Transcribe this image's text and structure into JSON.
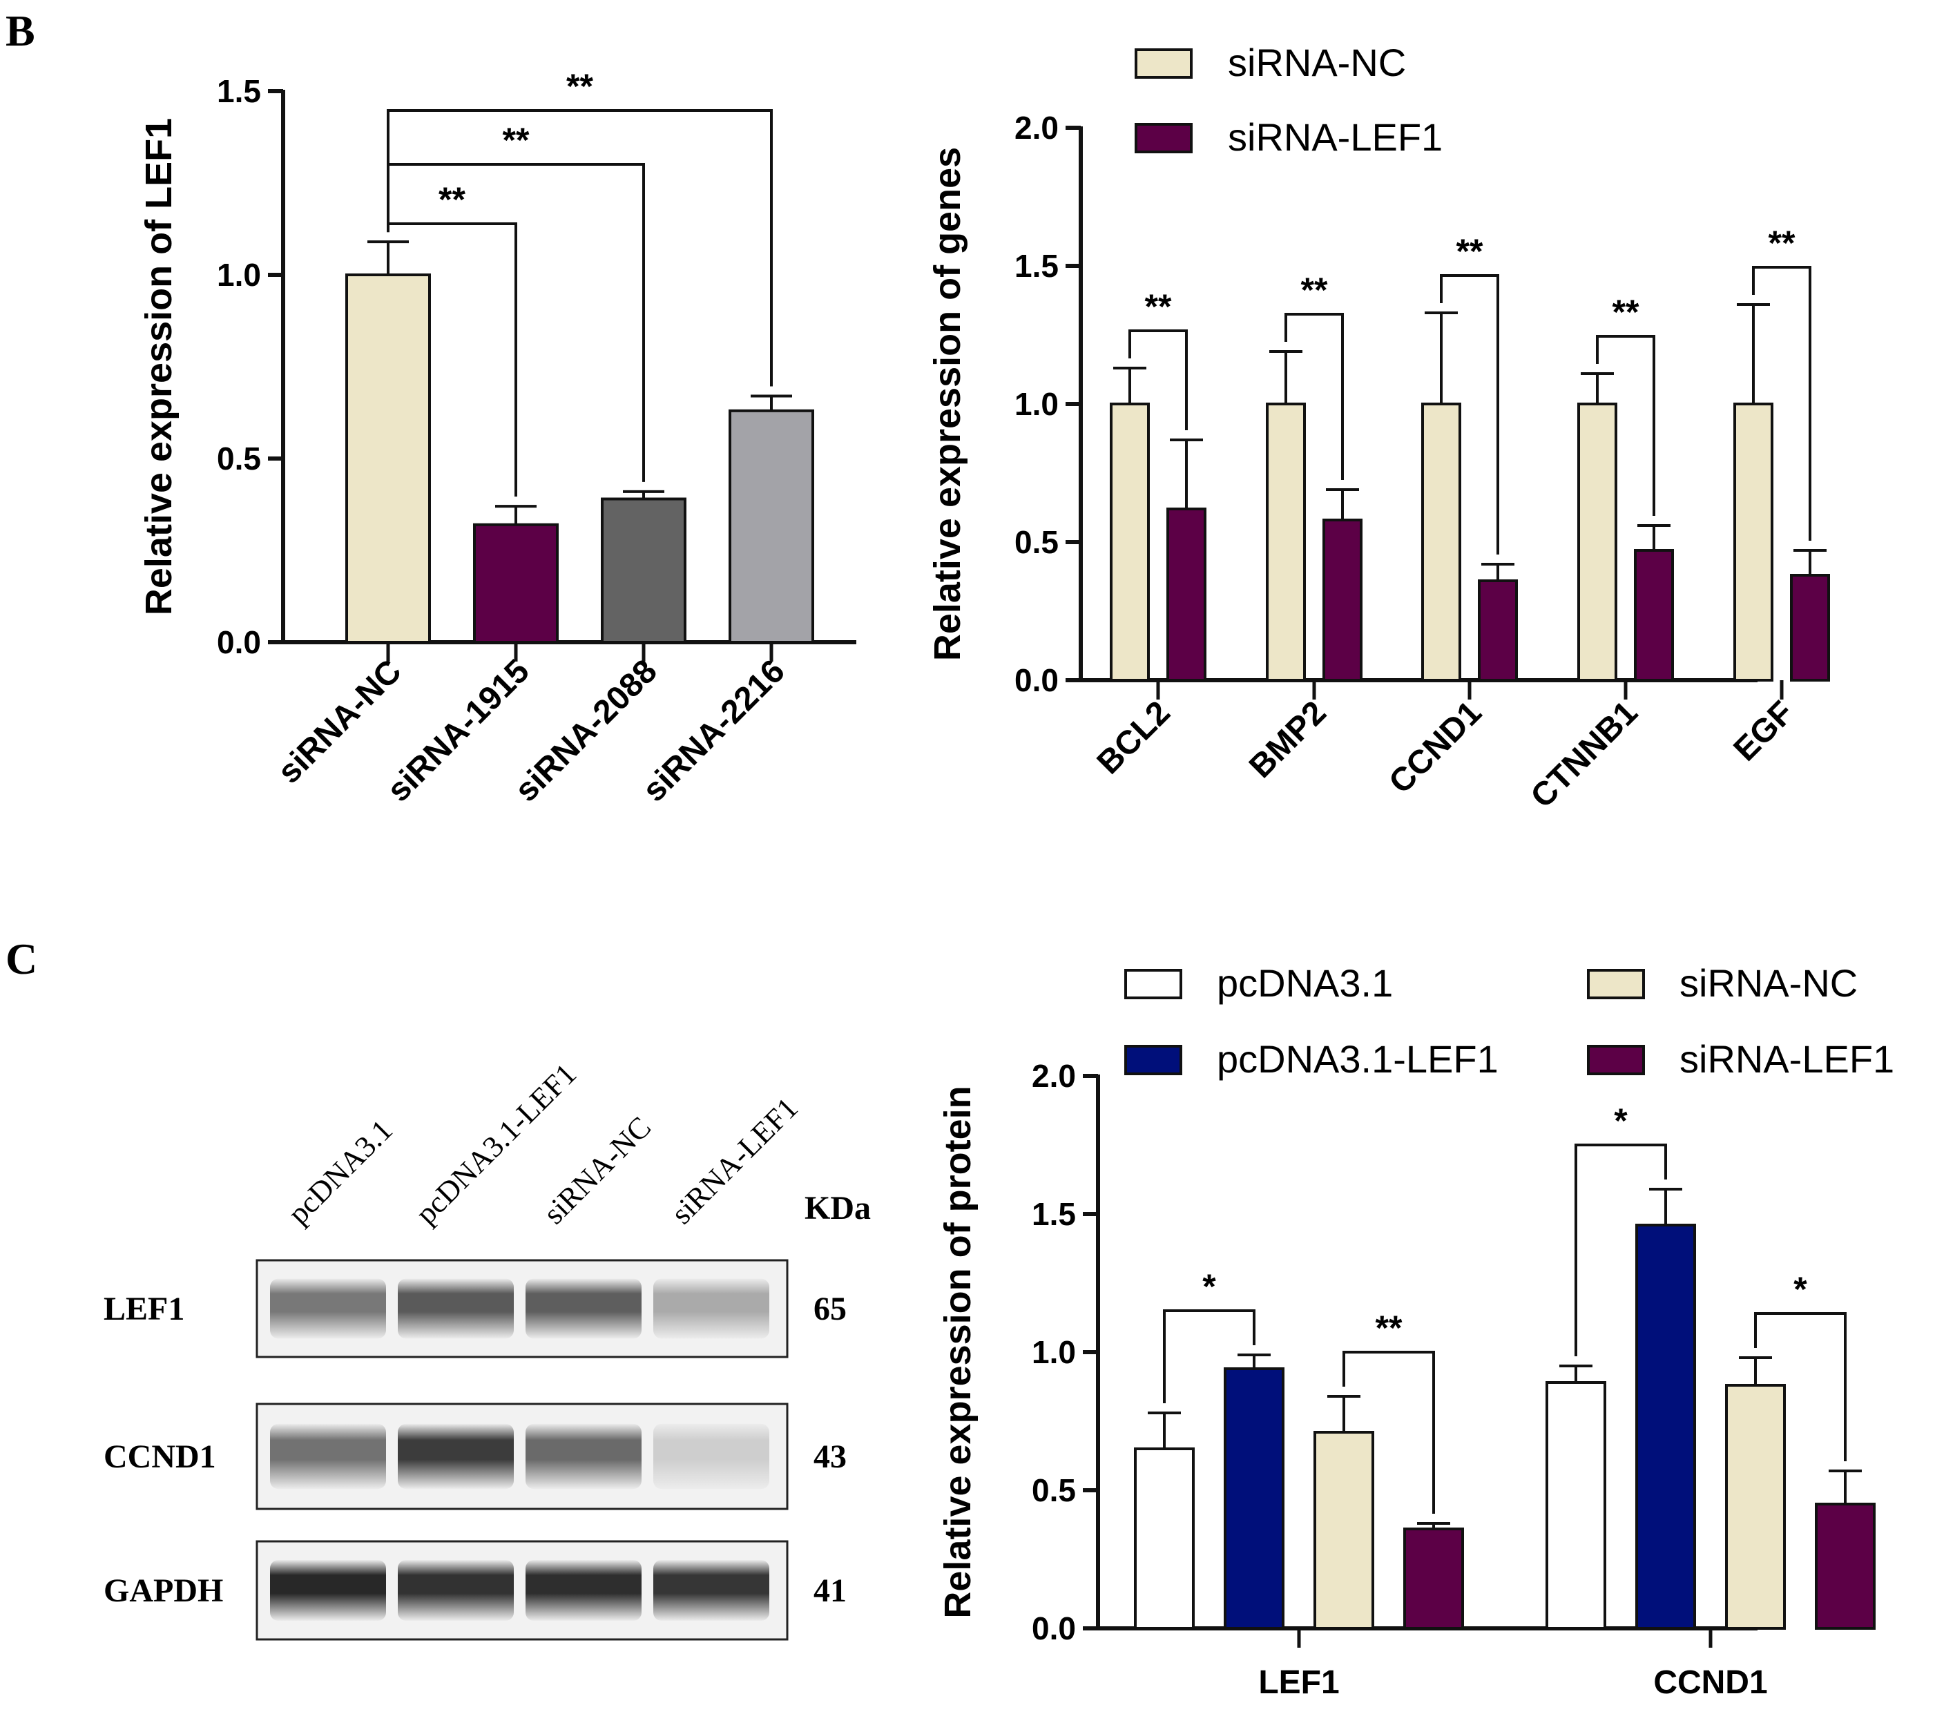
{
  "panels": {
    "B": "B",
    "C": "C"
  },
  "chart_data": [
    {
      "id": "lef1-knockdown",
      "type": "bar",
      "title": "",
      "ylabel": "Relative expression of  LEF1",
      "xlabel": "",
      "ylim": [
        0,
        1.5
      ],
      "yticks": [
        "0.0",
        "0.5",
        "1.0",
        "1.5"
      ],
      "categories": [
        "siRNA-NC",
        "siRNA-1915",
        "siRNA-2088",
        "siRNA-2216"
      ],
      "values": [
        1.0,
        0.32,
        0.39,
        0.63
      ],
      "errors": [
        0.09,
        0.05,
        0.02,
        0.04
      ],
      "colors": [
        "#ede6c8",
        "#5c0046",
        "#636363",
        "#a3a3a8"
      ],
      "significance": [
        {
          "from": 0,
          "to": 1,
          "label": "**"
        },
        {
          "from": 0,
          "to": 2,
          "label": "**"
        },
        {
          "from": 0,
          "to": 3,
          "label": "**"
        }
      ]
    },
    {
      "id": "target-genes",
      "type": "bar",
      "title": "",
      "ylabel": "Relative expression of  genes",
      "xlabel": "",
      "ylim": [
        0,
        2.0
      ],
      "yticks": [
        "0.0",
        "0.5",
        "1.0",
        "1.5",
        "2.0"
      ],
      "categories": [
        "BCL2",
        "BMP2",
        "CCND1",
        "CTNNB1",
        "EGF"
      ],
      "series": [
        {
          "name": "siRNA-NC",
          "color": "#ede6c8",
          "values": [
            1.0,
            1.0,
            1.0,
            1.0,
            1.0
          ],
          "errors": [
            0.13,
            0.19,
            0.33,
            0.11,
            0.36
          ]
        },
        {
          "name": "siRNA-LEF1",
          "color": "#5c0046",
          "values": [
            0.62,
            0.58,
            0.36,
            0.47,
            0.38
          ],
          "errors": [
            0.25,
            0.11,
            0.06,
            0.09,
            0.09
          ]
        }
      ],
      "significance": [
        "**",
        "**",
        "**",
        "**",
        "**"
      ],
      "legend": "top-left"
    },
    {
      "id": "protein",
      "type": "bar",
      "title": "",
      "ylabel": "Relative expression of  protein",
      "xlabel": "",
      "ylim": [
        0,
        2.0
      ],
      "yticks": [
        "0.0",
        "0.5",
        "1.0",
        "1.5",
        "2.0"
      ],
      "categories": [
        "LEF1",
        "CCND1"
      ],
      "series": [
        {
          "name": "pcDNA3.1",
          "color": "#ffffff",
          "values": [
            0.65,
            0.89
          ],
          "errors": [
            0.13,
            0.06
          ]
        },
        {
          "name": "pcDNA3.1-LEF1",
          "color": "#000f7a",
          "values": [
            0.94,
            1.46
          ],
          "errors": [
            0.05,
            0.13
          ]
        },
        {
          "name": "siRNA-NC",
          "color": "#ede6c8",
          "values": [
            0.71,
            0.88
          ],
          "errors": [
            0.13,
            0.1
          ]
        },
        {
          "name": "siRNA-LEF1",
          "color": "#5c0046",
          "values": [
            0.36,
            0.45
          ],
          "errors": [
            0.02,
            0.12
          ]
        }
      ],
      "significance": [
        {
          "category": 0,
          "from": 0,
          "to": 1,
          "label": "*"
        },
        {
          "category": 0,
          "from": 2,
          "to": 3,
          "label": "**"
        },
        {
          "category": 1,
          "from": 0,
          "to": 1,
          "label": "*"
        },
        {
          "category": 1,
          "from": 2,
          "to": 3,
          "label": "*"
        }
      ],
      "legend": "top"
    }
  ],
  "western_blot": {
    "lanes": [
      "pcDNA3.1",
      "pcDNA3.1-LEF1",
      "siRNA-NC",
      "siRNA-LEF1"
    ],
    "kda_header": "KDa",
    "rows": [
      {
        "protein": "LEF1",
        "kda": "65",
        "intensity": [
          0.55,
          0.7,
          0.68,
          0.3
        ]
      },
      {
        "protein": "CCND1",
        "kda": "43",
        "intensity": [
          0.58,
          0.85,
          0.62,
          0.12
        ]
      },
      {
        "protein": "GAPDH",
        "kda": "41",
        "intensity": [
          0.95,
          0.9,
          0.92,
          0.88
        ]
      }
    ]
  }
}
